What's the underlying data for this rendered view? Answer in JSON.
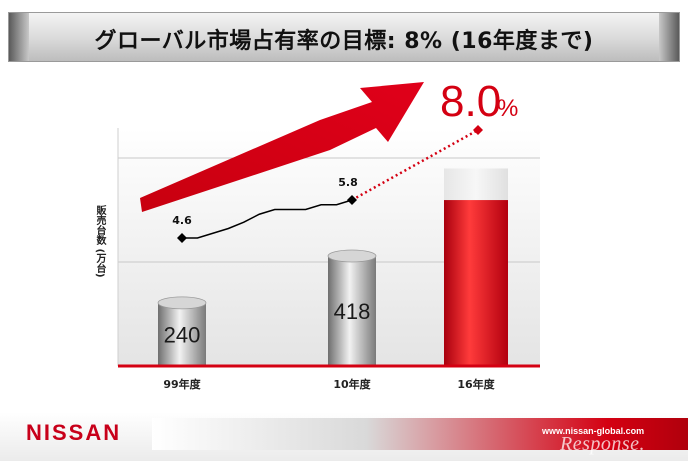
{
  "title": "グローバル市場占有率の目標: 8% (16年度まで)",
  "brand": {
    "logo": "NISSAN",
    "url": "www.nissan-global.com",
    "watermark": "Response."
  },
  "colors": {
    "accent": "#d40012",
    "bar_gray": "#9a9a9a",
    "line": "#000000",
    "background": "#ffffff"
  },
  "chart_data": {
    "type": "bar+line",
    "ylabel": "販売台数 (万台)",
    "categories": [
      "99年度",
      "10年度",
      "16年度"
    ],
    "bars": {
      "name": "販売台数",
      "values": [
        240,
        418,
        null
      ],
      "labels": [
        "240",
        "418",
        ""
      ],
      "target_level_fraction": 0.83
    },
    "market_share": {
      "name": "グローバル市場占有率 (%)",
      "start_label": "4.6",
      "mid_label": "5.8",
      "target_label": "8.0",
      "target_unit": "%",
      "points": [
        {
          "x": "99年度",
          "value": 4.6
        },
        {
          "x": "10年度",
          "value": 5.8
        },
        {
          "x": "16年度",
          "value": 8.0
        }
      ],
      "trend_values": [
        4.6,
        4.6,
        4.75,
        4.9,
        5.1,
        5.35,
        5.5,
        5.5,
        5.5,
        5.65,
        5.65,
        5.8
      ],
      "target_style": "dotted"
    },
    "grid": true,
    "arrow": "upward trend arrow",
    "legend": "none"
  }
}
